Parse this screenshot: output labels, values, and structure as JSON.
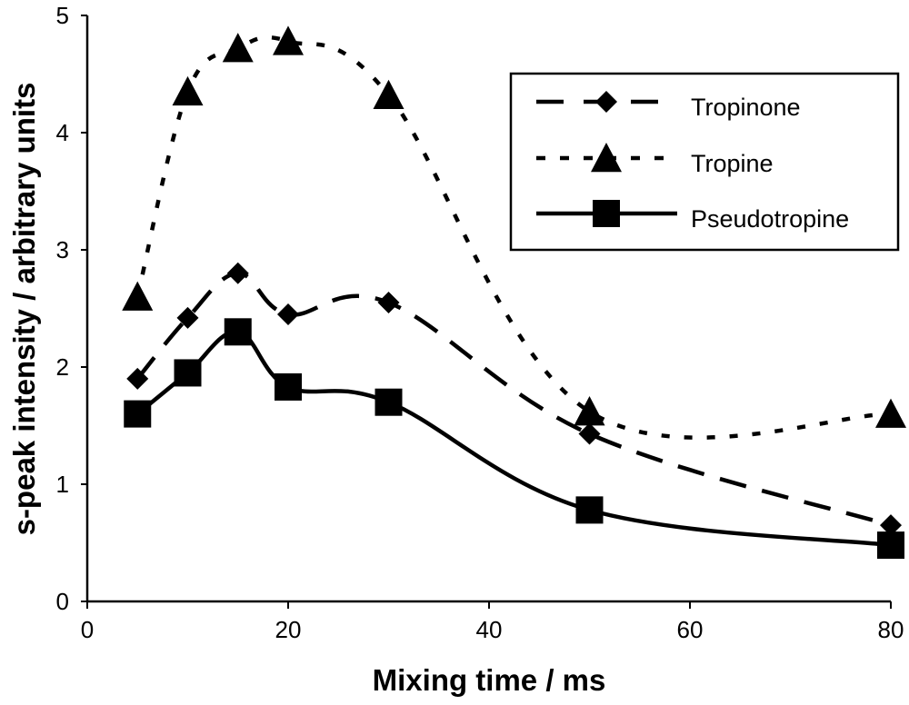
{
  "chart_data": {
    "type": "line",
    "title": "",
    "xlabel": "Mixing time / ms",
    "ylabel": "s-peak intensity / arbitrary units",
    "xlim": [
      0,
      80
    ],
    "ylim": [
      0,
      5
    ],
    "xticks": [
      "0",
      "20",
      "40",
      "60",
      "80"
    ],
    "yticks": [
      "0",
      "1",
      "2",
      "3",
      "4",
      "5"
    ],
    "grid": false,
    "legend_position": "top-right",
    "x": [
      5,
      10,
      15,
      20,
      30,
      50,
      80
    ],
    "series": [
      {
        "name": "Tropinone",
        "marker": "diamond",
        "line": "dashed",
        "smooth": true,
        "values": [
          1.9,
          2.42,
          2.8,
          2.45,
          2.55,
          1.43,
          0.65
        ]
      },
      {
        "name": "Tropine",
        "marker": "triangle",
        "line": "dotted",
        "smooth": true,
        "values": [
          2.6,
          4.35,
          4.72,
          4.78,
          4.32,
          1.62,
          1.6
        ]
      },
      {
        "name": "Pseudotropine",
        "marker": "square",
        "line": "solid",
        "smooth": true,
        "values": [
          1.6,
          1.95,
          2.3,
          1.83,
          1.7,
          0.78,
          0.48
        ]
      }
    ],
    "colors": {
      "line": "#000000",
      "background": "#ffffff"
    }
  }
}
